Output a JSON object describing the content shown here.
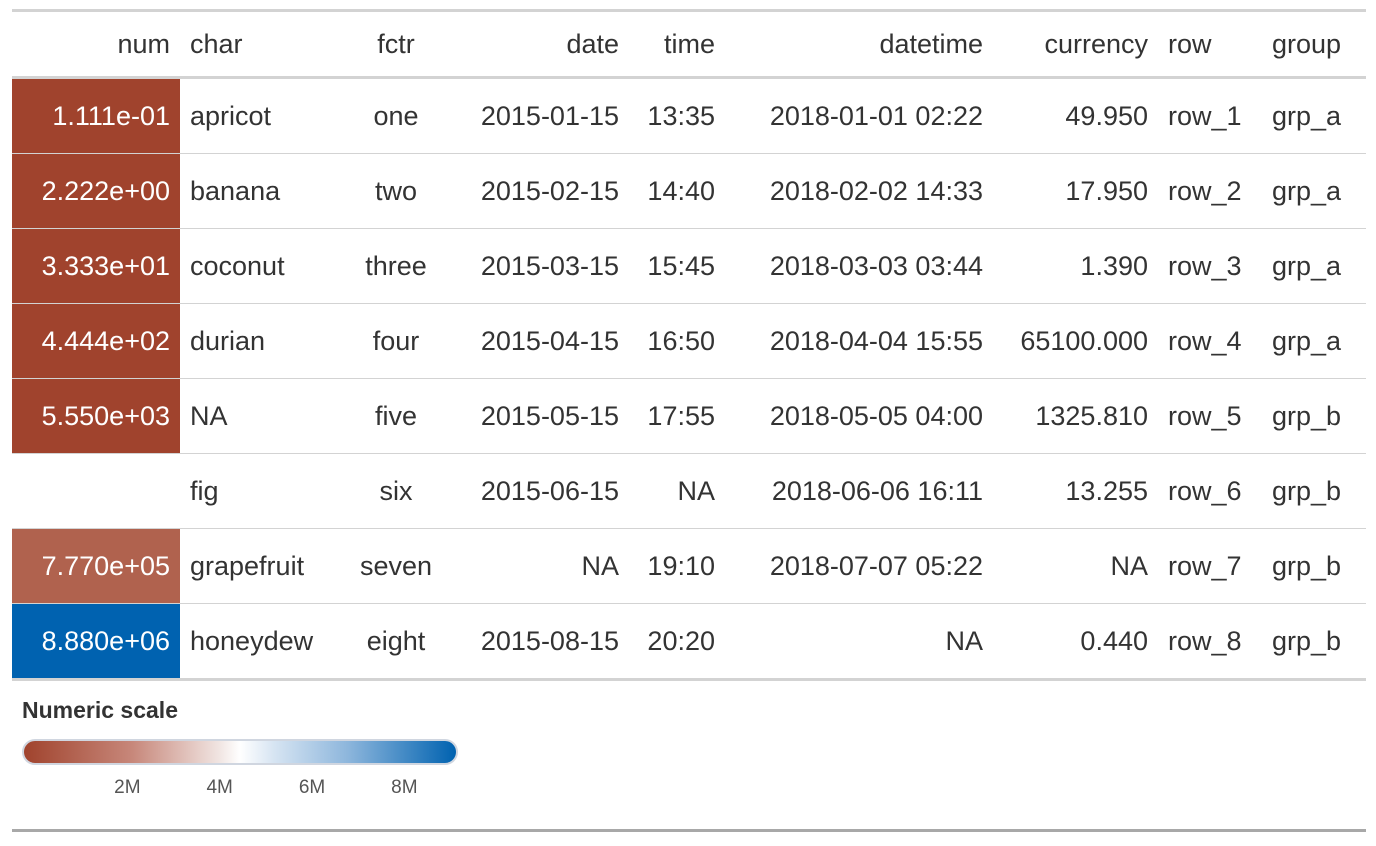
{
  "columns": [
    "num",
    "char",
    "fctr",
    "date",
    "time",
    "datetime",
    "currency",
    "row",
    "group"
  ],
  "rows": [
    {
      "num": "1.111e-01",
      "char": "apricot",
      "fctr": "one",
      "date": "2015-01-15",
      "time": "13:35",
      "datetime": "2018-01-01 02:22",
      "currency": "49.950",
      "row": "row_1",
      "group": "grp_a",
      "num_bg": "#A0432D",
      "num_fg": "#ffffff"
    },
    {
      "num": "2.222e+00",
      "char": "banana",
      "fctr": "two",
      "date": "2015-02-15",
      "time": "14:40",
      "datetime": "2018-02-02 14:33",
      "currency": "17.950",
      "row": "row_2",
      "group": "grp_a",
      "num_bg": "#A0432D",
      "num_fg": "#ffffff"
    },
    {
      "num": "3.333e+01",
      "char": "coconut",
      "fctr": "three",
      "date": "2015-03-15",
      "time": "15:45",
      "datetime": "2018-03-03 03:44",
      "currency": "1.390",
      "row": "row_3",
      "group": "grp_a",
      "num_bg": "#A0432D",
      "num_fg": "#ffffff"
    },
    {
      "num": "4.444e+02",
      "char": "durian",
      "fctr": "four",
      "date": "2015-04-15",
      "time": "16:50",
      "datetime": "2018-04-04 15:55",
      "currency": "65100.000",
      "row": "row_4",
      "group": "grp_a",
      "num_bg": "#A0432D",
      "num_fg": "#ffffff"
    },
    {
      "num": "5.550e+03",
      "char": "NA",
      "fctr": "five",
      "date": "2015-05-15",
      "time": "17:55",
      "datetime": "2018-05-05 04:00",
      "currency": "1325.810",
      "row": "row_5",
      "group": "grp_b",
      "num_bg": "#A0432D",
      "num_fg": "#ffffff"
    },
    {
      "num": "",
      "char": "fig",
      "fctr": "six",
      "date": "2015-06-15",
      "time": "NA",
      "datetime": "2018-06-06 16:11",
      "currency": "13.255",
      "row": "row_6",
      "group": "grp_b",
      "num_bg": "#ffffff",
      "num_fg": "#333333"
    },
    {
      "num": "7.770e+05",
      "char": "grapefruit",
      "fctr": "seven",
      "date": "NA",
      "time": "19:10",
      "datetime": "2018-07-07 05:22",
      "currency": "NA",
      "row": "row_7",
      "group": "grp_b",
      "num_bg": "#B0624E",
      "num_fg": "#ffffff"
    },
    {
      "num": "8.880e+06",
      "char": "honeydew",
      "fctr": "eight",
      "date": "2015-08-15",
      "time": "20:20",
      "datetime": "NA",
      "currency": "0.440",
      "row": "row_8",
      "group": "grp_b",
      "num_bg": "#0062B0",
      "num_fg": "#ffffff"
    }
  ],
  "legend": {
    "title": "Numeric scale",
    "ticks": [
      "2M",
      "4M",
      "6M",
      "8M"
    ],
    "tick_values": [
      2000000,
      4000000,
      6000000,
      8000000
    ],
    "domain": [
      0.1111,
      8880000
    ],
    "palette": [
      "#A0432D",
      "#ffffff",
      "#0062B0"
    ]
  }
}
